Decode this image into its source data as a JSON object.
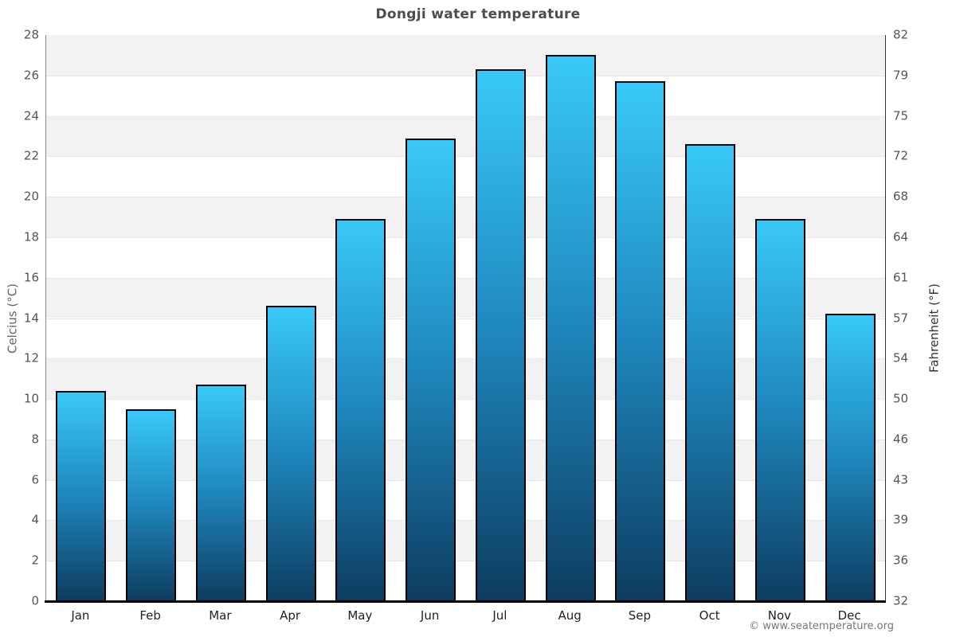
{
  "watermark": "© www.seatemperature.org",
  "chart_data": {
    "type": "bar",
    "title": "Dongji water temperature",
    "categories": [
      "Jan",
      "Feb",
      "Mar",
      "Apr",
      "May",
      "Jun",
      "Jul",
      "Aug",
      "Sep",
      "Oct",
      "Nov",
      "Dec"
    ],
    "values": [
      10.4,
      9.5,
      10.7,
      14.6,
      18.9,
      22.9,
      26.3,
      27.0,
      25.7,
      22.6,
      18.9,
      14.2
    ],
    "series_name": "Water temperature (°C)",
    "ylabel_left": "Celcius (°C)",
    "ylabel_right": "Fahrenheit (°F)",
    "ylim": [
      0,
      28
    ],
    "ytick_step": 2,
    "yticks_celsius": [
      28,
      26,
      24,
      22,
      20,
      18,
      16,
      14,
      12,
      10,
      8,
      6,
      4,
      2,
      0
    ],
    "yticks_fahrenheit": [
      82,
      79,
      75,
      72,
      68,
      64,
      61,
      57,
      54,
      50,
      46,
      43,
      39,
      36,
      32
    ],
    "grid": "alternating-horizontal-bands",
    "legend": "none",
    "colors": {
      "bar_top": "#38c9f8",
      "bar_mid": "#1e86bc",
      "bar_bottom": "#0d3c60",
      "bar_border": "#000000",
      "band_gray": "#f2f2f2",
      "band_white": "#ffffff",
      "gridline": "#e6e6e6",
      "axis_line_left": "#888888",
      "axis_line_right": "#333333",
      "x_axis_line": "#000000",
      "title_color": "#4d4d4d",
      "tick_color": "#555555",
      "month_color": "#222222",
      "ylabel_left_color": "#666666",
      "ylabel_right_color": "#333333",
      "watermark_color": "#777777"
    }
  }
}
